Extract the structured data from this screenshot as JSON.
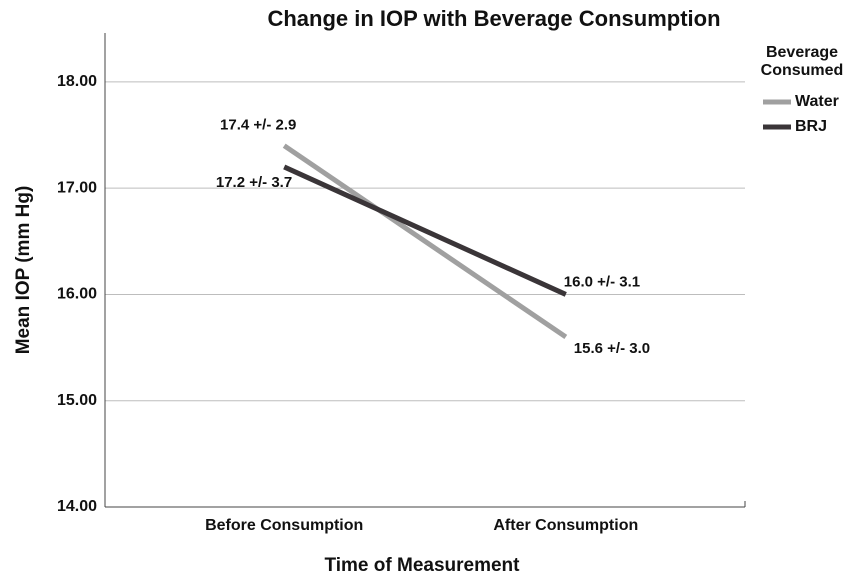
{
  "chart_data": {
    "type": "line",
    "title": "Change in IOP with Beverage Consumption",
    "x_label": "Time of Measurement",
    "y_label": "Mean IOP (mm Hg)",
    "categories": [
      "Before Consumption",
      "After Consumption"
    ],
    "series": [
      {
        "name": "Water",
        "color": "#a0a0a0",
        "values": [
          17.4,
          15.6
        ],
        "value_labels": [
          "17.4 +/- 2.9",
          "15.6 +/- 3.0"
        ]
      },
      {
        "name": "BRJ",
        "color": "#3a3538",
        "values": [
          17.2,
          16.0
        ],
        "value_labels": [
          "17.2 +/- 3.7",
          "16.0 +/- 3.1"
        ]
      }
    ],
    "ylim": [
      14,
      18.46
    ],
    "yticks": [
      {
        "value": 14,
        "label": "14.00"
      },
      {
        "value": 15,
        "label": "15.00"
      },
      {
        "value": 16,
        "label": "16.00"
      },
      {
        "value": 17,
        "label": "17.00"
      },
      {
        "value": 18,
        "label": "18.00"
      }
    ],
    "grid": true,
    "legend_title": "Beverage Consumed",
    "legend_position": "right"
  }
}
